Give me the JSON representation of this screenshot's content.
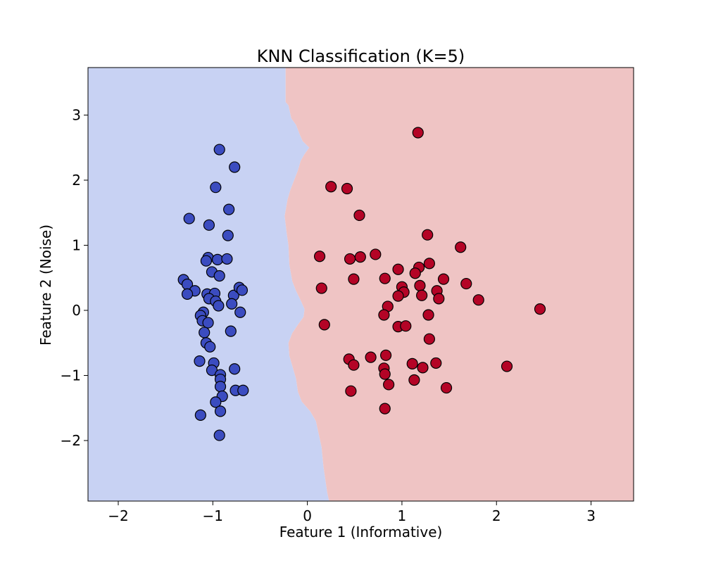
{
  "chart_data": {
    "type": "scatter",
    "title": "KNN Classification (K=5)",
    "xlabel": "Feature 1 (Informative)",
    "ylabel": "Feature 2 (Noise)",
    "xlim": [
      -2.32,
      3.45
    ],
    "ylim": [
      -2.93,
      3.73
    ],
    "xticks": [
      -2,
      -1,
      0,
      1,
      2,
      3
    ],
    "yticks": [
      -2,
      -1,
      0,
      1,
      2,
      3
    ],
    "xtick_labels": [
      "−2",
      "−1",
      "0",
      "1",
      "2",
      "3"
    ],
    "ytick_labels": [
      "−2",
      "−1",
      "0",
      "1",
      "2",
      "3"
    ],
    "grid": false,
    "decision_boundary": [
      [
        -0.23,
        3.73
      ],
      [
        -0.23,
        3.2
      ],
      [
        -0.2,
        3.15
      ],
      [
        -0.17,
        2.95
      ],
      [
        -0.12,
        2.85
      ],
      [
        -0.08,
        2.7
      ],
      [
        -0.05,
        2.6
      ],
      [
        0.02,
        2.5
      ],
      [
        -0.03,
        2.4
      ],
      [
        -0.07,
        2.3
      ],
      [
        -0.1,
        2.15
      ],
      [
        -0.14,
        2.0
      ],
      [
        -0.18,
        1.85
      ],
      [
        -0.21,
        1.7
      ],
      [
        -0.24,
        1.45
      ],
      [
        -0.22,
        1.2
      ],
      [
        -0.2,
        1.0
      ],
      [
        -0.19,
        0.7
      ],
      [
        -0.16,
        0.45
      ],
      [
        -0.12,
        0.3
      ],
      [
        -0.07,
        0.15
      ],
      [
        -0.03,
        0.02
      ],
      [
        -0.04,
        -0.1
      ],
      [
        -0.1,
        -0.22
      ],
      [
        -0.16,
        -0.35
      ],
      [
        -0.2,
        -0.5
      ],
      [
        -0.19,
        -0.7
      ],
      [
        -0.15,
        -0.9
      ],
      [
        -0.12,
        -1.05
      ],
      [
        -0.1,
        -1.25
      ],
      [
        -0.06,
        -1.4
      ],
      [
        0.03,
        -1.55
      ],
      [
        0.09,
        -1.7
      ],
      [
        0.12,
        -1.9
      ],
      [
        0.15,
        -2.1
      ],
      [
        0.17,
        -2.4
      ],
      [
        0.19,
        -2.6
      ],
      [
        0.21,
        -2.8
      ],
      [
        0.23,
        -2.93
      ]
    ],
    "region_colors": {
      "class0": "#c8d2f3",
      "class1": "#efc4c4"
    },
    "series": [
      {
        "color": "#3b4cc0",
        "points": [
          [
            -0.93,
            2.47
          ],
          [
            -0.77,
            2.2
          ],
          [
            -0.97,
            1.89
          ],
          [
            -0.83,
            1.55
          ],
          [
            -1.25,
            1.41
          ],
          [
            -1.04,
            1.31
          ],
          [
            -0.84,
            1.15
          ],
          [
            -1.05,
            0.81
          ],
          [
            -1.07,
            0.76
          ],
          [
            -0.95,
            0.78
          ],
          [
            -0.85,
            0.79
          ],
          [
            -1.01,
            0.59
          ],
          [
            -0.93,
            0.53
          ],
          [
            -1.31,
            0.47
          ],
          [
            -1.27,
            0.4
          ],
          [
            -1.19,
            0.3
          ],
          [
            -1.27,
            0.25
          ],
          [
            -1.06,
            0.25
          ],
          [
            -0.98,
            0.26
          ],
          [
            -0.78,
            0.23
          ],
          [
            -0.72,
            0.35
          ],
          [
            -0.69,
            0.31
          ],
          [
            -1.04,
            0.18
          ],
          [
            -0.97,
            0.14
          ],
          [
            -0.94,
            0.07
          ],
          [
            -0.8,
            0.1
          ],
          [
            -0.71,
            -0.03
          ],
          [
            -1.1,
            -0.03
          ],
          [
            -1.13,
            -0.08
          ],
          [
            -1.11,
            -0.16
          ],
          [
            -1.05,
            -0.19
          ],
          [
            -1.09,
            -0.34
          ],
          [
            -0.81,
            -0.32
          ],
          [
            -1.07,
            -0.5
          ],
          [
            -1.03,
            -0.56
          ],
          [
            -1.14,
            -0.78
          ],
          [
            -0.99,
            -0.81
          ],
          [
            -1.01,
            -0.92
          ],
          [
            -0.92,
            -0.99
          ],
          [
            -0.77,
            -0.9
          ],
          [
            -0.92,
            -1.06
          ],
          [
            -0.92,
            -1.17
          ],
          [
            -0.76,
            -1.23
          ],
          [
            -0.68,
            -1.23
          ],
          [
            -0.9,
            -1.32
          ],
          [
            -0.97,
            -1.41
          ],
          [
            -0.92,
            -1.55
          ],
          [
            -1.13,
            -1.61
          ],
          [
            -0.93,
            -1.92
          ]
        ]
      },
      {
        "color": "#b40426",
        "points": [
          [
            1.17,
            2.73
          ],
          [
            0.25,
            1.9
          ],
          [
            0.42,
            1.87
          ],
          [
            0.55,
            1.46
          ],
          [
            1.27,
            1.16
          ],
          [
            1.62,
            0.97
          ],
          [
            0.13,
            0.83
          ],
          [
            0.45,
            0.79
          ],
          [
            0.56,
            0.82
          ],
          [
            0.72,
            0.86
          ],
          [
            1.29,
            0.72
          ],
          [
            1.18,
            0.66
          ],
          [
            0.96,
            0.63
          ],
          [
            1.14,
            0.57
          ],
          [
            0.49,
            0.48
          ],
          [
            0.82,
            0.49
          ],
          [
            1.44,
            0.48
          ],
          [
            1.68,
            0.41
          ],
          [
            1.19,
            0.38
          ],
          [
            1.0,
            0.36
          ],
          [
            0.15,
            0.34
          ],
          [
            1.37,
            0.3
          ],
          [
            1.02,
            0.28
          ],
          [
            0.96,
            0.22
          ],
          [
            1.21,
            0.23
          ],
          [
            1.39,
            0.18
          ],
          [
            1.81,
            0.16
          ],
          [
            0.85,
            0.06
          ],
          [
            2.46,
            0.02
          ],
          [
            0.81,
            -0.07
          ],
          [
            1.28,
            -0.07
          ],
          [
            0.18,
            -0.22
          ],
          [
            0.96,
            -0.25
          ],
          [
            1.04,
            -0.24
          ],
          [
            1.29,
            -0.44
          ],
          [
            0.83,
            -0.69
          ],
          [
            0.67,
            -0.72
          ],
          [
            0.44,
            -0.75
          ],
          [
            0.49,
            -0.84
          ],
          [
            1.11,
            -0.82
          ],
          [
            1.36,
            -0.81
          ],
          [
            1.22,
            -0.88
          ],
          [
            0.81,
            -0.89
          ],
          [
            0.82,
            -0.98
          ],
          [
            2.11,
            -0.86
          ],
          [
            1.13,
            -1.07
          ],
          [
            0.86,
            -1.14
          ],
          [
            1.47,
            -1.19
          ],
          [
            0.46,
            -1.24
          ],
          [
            0.82,
            -1.51
          ]
        ]
      }
    ]
  }
}
